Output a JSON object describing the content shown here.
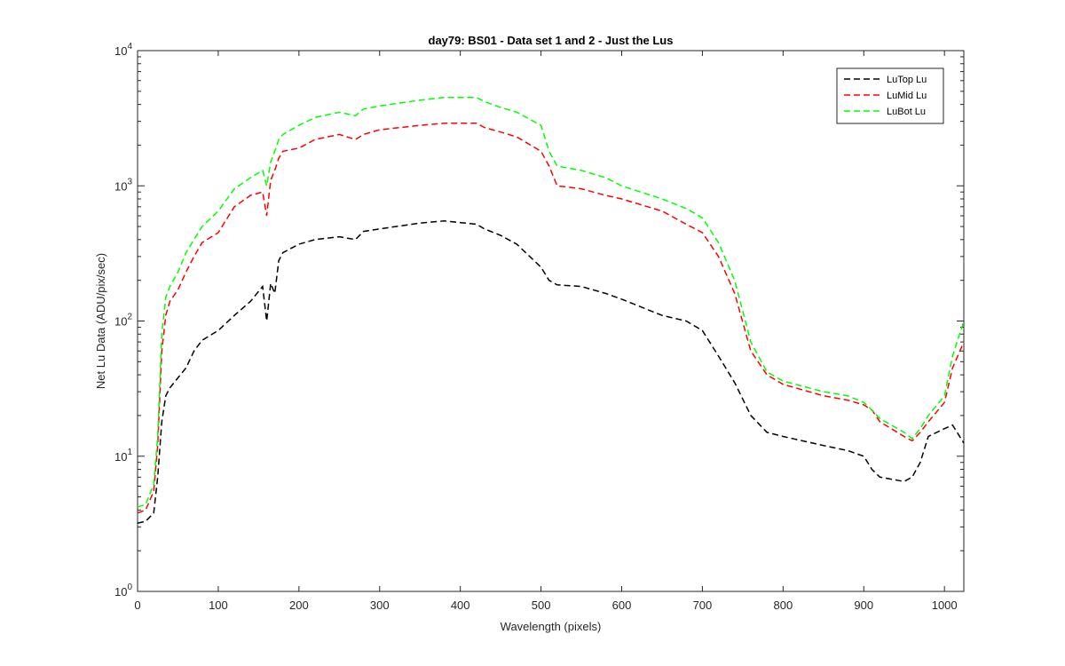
{
  "chart_data": {
    "type": "line",
    "title": "day79: BS01 - Data set 1 and 2 - Just the Lus",
    "xlabel": "Wavelength (pixels)",
    "ylabel": "Net Lu Data (ADU/pix/sec)",
    "xlim": [
      0,
      1024
    ],
    "ylim": [
      1,
      10000
    ],
    "yscale": "log",
    "x_ticks": [
      0,
      100,
      200,
      300,
      400,
      500,
      600,
      700,
      800,
      900,
      1000
    ],
    "y_tick_labels": [
      {
        "base": "10",
        "exp": "0",
        "value": 1
      },
      {
        "base": "10",
        "exp": "1",
        "value": 10
      },
      {
        "base": "10",
        "exp": "2",
        "value": 100
      },
      {
        "base": "10",
        "exp": "3",
        "value": 1000
      },
      {
        "base": "10",
        "exp": "4",
        "value": 10000
      }
    ],
    "grid": false,
    "legend_position": "top-right",
    "line_style": "dashed",
    "x": [
      0,
      10,
      20,
      25,
      30,
      35,
      40,
      50,
      60,
      70,
      80,
      100,
      120,
      140,
      155,
      160,
      165,
      170,
      175,
      180,
      200,
      220,
      250,
      270,
      280,
      300,
      350,
      380,
      420,
      430,
      450,
      470,
      500,
      510,
      520,
      550,
      580,
      600,
      650,
      680,
      700,
      720,
      740,
      760,
      780,
      800,
      850,
      880,
      900,
      910,
      920,
      950,
      960,
      970,
      980,
      1000,
      1010,
      1024
    ],
    "series": [
      {
        "name": "LuTop  Lu",
        "color": "#000000",
        "values": [
          3.2,
          3.3,
          3.8,
          7,
          18,
          28,
          32,
          38,
          45,
          60,
          72,
          85,
          110,
          140,
          180,
          100,
          190,
          160,
          280,
          320,
          370,
          400,
          420,
          400,
          460,
          480,
          530,
          550,
          520,
          480,
          430,
          370,
          250,
          200,
          185,
          180,
          160,
          145,
          110,
          100,
          85,
          55,
          35,
          20,
          15,
          14,
          12,
          11,
          10,
          8,
          7,
          6.5,
          7,
          9,
          14,
          16,
          17,
          12.5
        ]
      },
      {
        "name": "LuMid  Lu",
        "color": "#ff0000",
        "values": [
          3.8,
          4.0,
          5.5,
          12,
          60,
          110,
          140,
          170,
          230,
          300,
          380,
          450,
          700,
          850,
          900,
          600,
          1100,
          1300,
          1600,
          1800,
          1900,
          2200,
          2400,
          2200,
          2400,
          2600,
          2800,
          2900,
          2900,
          2700,
          2500,
          2300,
          1800,
          1400,
          1000,
          950,
          850,
          800,
          650,
          520,
          450,
          300,
          160,
          60,
          40,
          34,
          28,
          26,
          24,
          22,
          18,
          14,
          13,
          15,
          18,
          25,
          45,
          70
        ]
      },
      {
        "name": "LuBot  Lu",
        "color": "#00ff00",
        "values": [
          4.2,
          4.4,
          6.2,
          14,
          80,
          150,
          180,
          230,
          320,
          400,
          500,
          650,
          950,
          1150,
          1300,
          1000,
          1500,
          1800,
          2200,
          2400,
          2800,
          3200,
          3500,
          3300,
          3700,
          3900,
          4300,
          4500,
          4500,
          4200,
          3800,
          3500,
          2800,
          1800,
          1400,
          1300,
          1150,
          1000,
          800,
          680,
          580,
          380,
          200,
          70,
          42,
          36,
          30,
          28,
          25,
          22,
          19,
          15,
          13.5,
          16,
          20,
          28,
          55,
          100
        ]
      }
    ]
  }
}
